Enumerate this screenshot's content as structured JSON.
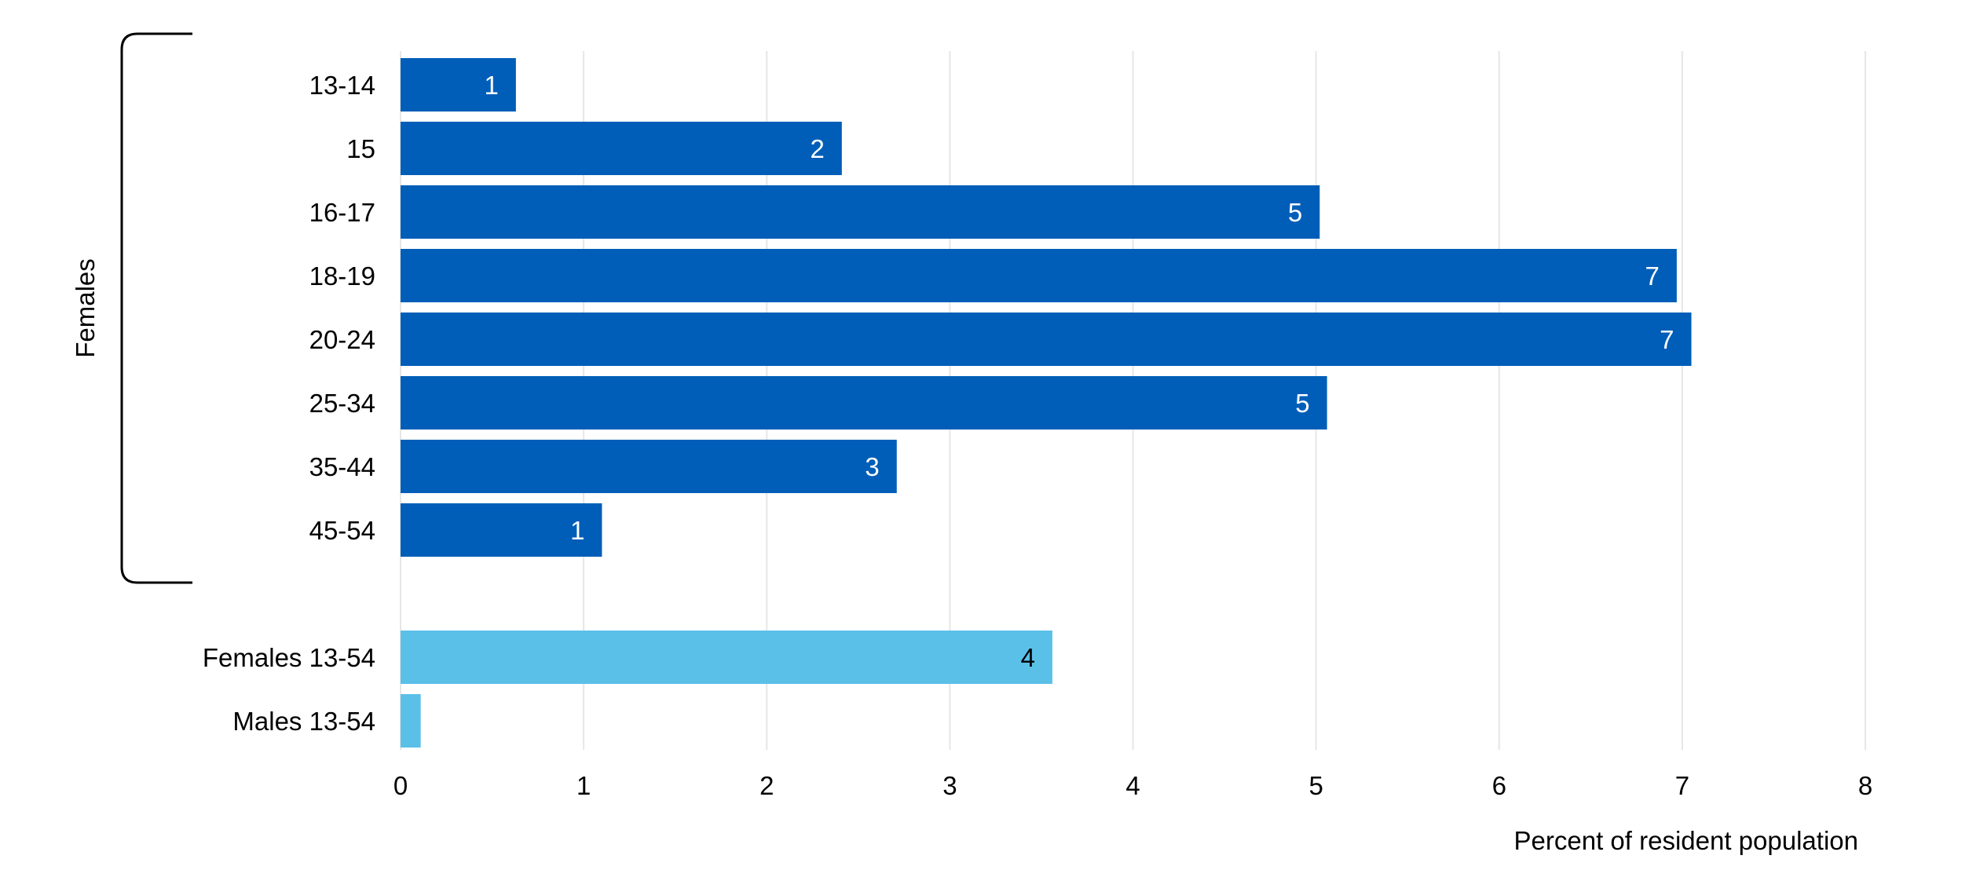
{
  "chart_data": {
    "type": "bar",
    "orientation": "horizontal",
    "categories": [
      "13-14",
      "15",
      "16-17",
      "18-19",
      "20-24",
      "25-34",
      "35-44",
      "45-54",
      "Females 13-54",
      "Males 13-54"
    ],
    "values": [
      0.63,
      2.41,
      5.02,
      6.97,
      7.05,
      5.06,
      2.71,
      1.1,
      3.56,
      0.11
    ],
    "data_labels": [
      "1",
      "2",
      "5",
      "7",
      "7",
      "5",
      "3",
      "1",
      "4",
      ""
    ],
    "bar_colors": [
      "#005eb8",
      "#005eb8",
      "#005eb8",
      "#005eb8",
      "#005eb8",
      "#005eb8",
      "#005eb8",
      "#005eb8",
      "#5bc0e8",
      "#5bc0e8"
    ],
    "label_colors": [
      "#ffffff",
      "#ffffff",
      "#ffffff",
      "#ffffff",
      "#ffffff",
      "#ffffff",
      "#ffffff",
      "#ffffff",
      "#000000",
      "#000000"
    ],
    "group": {
      "label": "Females",
      "from_index": 0,
      "to_index": 7
    },
    "xlabel": "Percent of resident population",
    "xlim": [
      0,
      8
    ],
    "xticks": [
      0,
      1,
      2,
      3,
      4,
      5,
      6,
      7,
      8
    ],
    "grid": "vertical",
    "legend": "none"
  }
}
